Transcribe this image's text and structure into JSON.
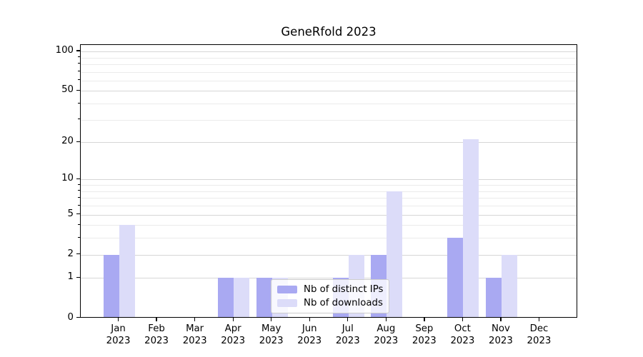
{
  "chart_data": {
    "type": "bar",
    "title": "GeneRfold 2023",
    "year": "2023",
    "months": [
      "Jan",
      "Feb",
      "Mar",
      "Apr",
      "May",
      "Jun",
      "Jul",
      "Aug",
      "Sep",
      "Oct",
      "Nov",
      "Dec"
    ],
    "series": [
      {
        "name": "Nb of distinct IPs",
        "color": "#a9a9f2",
        "values": [
          2,
          0,
          0,
          1,
          1,
          0,
          1,
          2,
          0,
          3,
          1,
          0
        ]
      },
      {
        "name": "Nb of downloads",
        "color": "#dcdcf9",
        "values": [
          4,
          0,
          0,
          1,
          1,
          0,
          2,
          8,
          0,
          21,
          2,
          0
        ]
      }
    ],
    "yticks": [
      0,
      1,
      2,
      5,
      10,
      20,
      50,
      100
    ],
    "minor_yticks": [
      3,
      4,
      6,
      7,
      8,
      9,
      30,
      40,
      60,
      70,
      80,
      90
    ],
    "scale": "log1p",
    "ylim": [
      0,
      112
    ],
    "xlabel": "",
    "ylabel": "",
    "grid": true,
    "legend_position": "lower-center"
  }
}
